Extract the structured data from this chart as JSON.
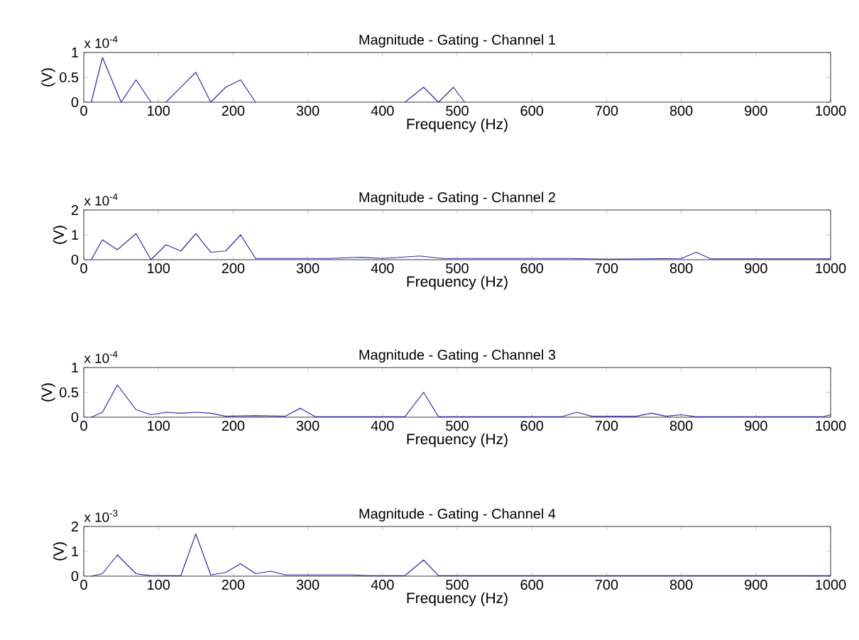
{
  "chart_data": [
    {
      "type": "line",
      "title": "Magnitude - Gating - Channel 1",
      "xlabel": "Frequency (Hz)",
      "ylabel": "(V)",
      "annotations": [
        "x 10$^{-4}$"
      ],
      "x": [
        10,
        25,
        50,
        70,
        90,
        100,
        110,
        150,
        170,
        190,
        210,
        230,
        300,
        430,
        455,
        475,
        495,
        510
      ],
      "series": [
        {
          "color": "#2a2aa8",
          "values": [
            0,
            0.9,
            0,
            0.45,
            0,
            null,
            0,
            0.6,
            0,
            0.3,
            0.45,
            0,
            null,
            0,
            0.3,
            0,
            0.3,
            0
          ]
        }
      ],
      "xlim": [
        0,
        1000
      ],
      "xticks": [
        0,
        100,
        200,
        300,
        400,
        500,
        600,
        700,
        800,
        900,
        1000
      ],
      "ylim": [
        0,
        1
      ],
      "yticks": [
        0,
        0.5,
        1
      ]
    },
    {
      "type": "line",
      "title": "Magnitude - Gating - Channel 2",
      "xlabel": "Frequency (Hz)",
      "ylabel": "(V)",
      "annotations": [
        "x 10$^{-4}$"
      ],
      "x": [
        10,
        25,
        45,
        70,
        90,
        110,
        130,
        150,
        170,
        190,
        210,
        230,
        290,
        330,
        370,
        400,
        450,
        480,
        550,
        600,
        650,
        700,
        800,
        820,
        840,
        1000
      ],
      "series": [
        {
          "color": "#2a2aa8",
          "values": [
            0,
            0.8,
            0.4,
            1.05,
            0,
            0.6,
            0.35,
            1.05,
            0.3,
            0.35,
            1.0,
            0.05,
            0.05,
            0.05,
            0.1,
            0.05,
            0.15,
            0.05,
            0.05,
            0.05,
            0.05,
            0.02,
            0.05,
            0.3,
            0.03,
            0.03
          ]
        }
      ],
      "xlim": [
        0,
        1000
      ],
      "xticks": [
        0,
        100,
        200,
        300,
        400,
        500,
        600,
        700,
        800,
        900,
        1000
      ],
      "ylim": [
        0,
        2
      ],
      "yticks": [
        0,
        1,
        2
      ]
    },
    {
      "type": "line",
      "title": "Magnitude - Gating - Channel 3",
      "xlabel": "Frequency (Hz)",
      "ylabel": "(V)",
      "annotations": [
        "x 10$^{-4}$"
      ],
      "x": [
        10,
        25,
        45,
        70,
        90,
        110,
        130,
        150,
        170,
        190,
        230,
        270,
        290,
        310,
        430,
        455,
        475,
        640,
        660,
        680,
        740,
        760,
        780,
        800,
        820,
        990,
        1000
      ],
      "series": [
        {
          "color": "#2a2aa8",
          "values": [
            0,
            0.1,
            0.65,
            0.15,
            0.05,
            0.1,
            0.08,
            0.1,
            0.08,
            0.02,
            0.03,
            0.02,
            0.18,
            0.01,
            0.01,
            0.5,
            0.01,
            0.01,
            0.1,
            0.02,
            0.02,
            0.08,
            0.02,
            0.05,
            0.01,
            0.01,
            0.05
          ]
        }
      ],
      "xlim": [
        0,
        1000
      ],
      "xticks": [
        0,
        100,
        200,
        300,
        400,
        500,
        600,
        700,
        800,
        900,
        1000
      ],
      "ylim": [
        0,
        1
      ],
      "yticks": [
        0,
        0.5,
        1
      ]
    },
    {
      "type": "line",
      "title": "Magnitude - Gating - Channel 4",
      "xlabel": "Frequency (Hz)",
      "ylabel": "(V)",
      "annotations": [
        "x 10$^{-3}$"
      ],
      "x": [
        10,
        25,
        45,
        70,
        90,
        130,
        150,
        170,
        190,
        210,
        230,
        250,
        270,
        320,
        360,
        380,
        430,
        455,
        475,
        1000
      ],
      "series": [
        {
          "color": "#2a2aa8",
          "values": [
            0,
            0.1,
            0.85,
            0.1,
            0.02,
            0.02,
            1.7,
            0.05,
            0.15,
            0.5,
            0.1,
            0.2,
            0.05,
            0.05,
            0.05,
            0.02,
            0.02,
            0.65,
            0.02,
            0.02
          ]
        }
      ],
      "xlim": [
        0,
        1000
      ],
      "xticks": [
        0,
        100,
        200,
        300,
        400,
        500,
        600,
        700,
        800,
        900,
        1000
      ],
      "ylim": [
        0,
        2
      ],
      "yticks": [
        0,
        1,
        2
      ]
    }
  ]
}
